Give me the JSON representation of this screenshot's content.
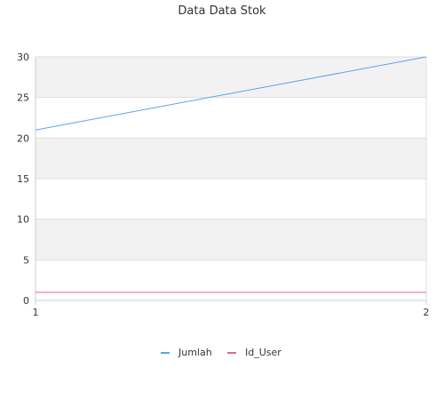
{
  "chart_data": {
    "type": "line",
    "title": "Data Data Stok",
    "xlabel": "",
    "ylabel": "",
    "x": [
      1,
      2
    ],
    "x_ticks": [
      "1",
      "2"
    ],
    "ylim": [
      0,
      30
    ],
    "y_ticks": [
      "0",
      "5",
      "10",
      "15",
      "20",
      "25",
      "30"
    ],
    "grid": true,
    "legend_position": "bottom",
    "series": [
      {
        "name": "Jumlah",
        "values": [
          21,
          30
        ],
        "color": "#5da5e8"
      },
      {
        "name": "Id_User",
        "values": [
          1,
          1
        ],
        "color": "#e8609a"
      }
    ]
  }
}
